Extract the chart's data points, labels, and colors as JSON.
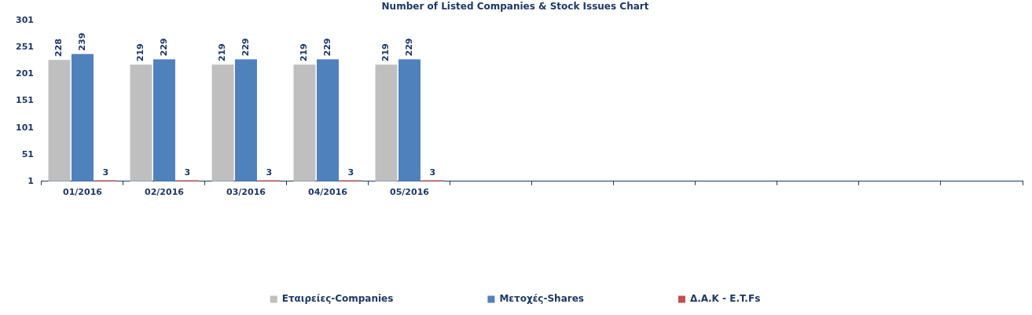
{
  "chart_data": {
    "type": "bar",
    "title": "Number of Listed Companies & Stock Issues Chart",
    "categories": [
      "01/2016",
      "02/2016",
      "03/2016",
      "04/2016",
      "05/2016",
      null,
      null,
      null,
      null,
      null,
      null,
      null
    ],
    "series": [
      {
        "name": "Εταιρείες-Companies",
        "color": "#bfbfbf",
        "values": [
          228,
          219,
          219,
          219,
          219,
          null,
          null,
          null,
          null,
          null,
          null,
          null
        ]
      },
      {
        "name": "Μετοχές-Shares",
        "color": "#4f81bd",
        "values": [
          239,
          229,
          229,
          229,
          229,
          null,
          null,
          null,
          null,
          null,
          null,
          null
        ]
      },
      {
        "name": "Δ.Α.Κ - E.T.Fs",
        "color": "#c0504d",
        "values": [
          3,
          3,
          3,
          3,
          3,
          null,
          null,
          null,
          null,
          null,
          null,
          null
        ]
      }
    ],
    "ylim": [
      1,
      301
    ],
    "yticks": [
      1,
      51,
      101,
      151,
      201,
      251,
      301
    ],
    "grid": false,
    "legend": "bottom",
    "data_labels": true
  }
}
